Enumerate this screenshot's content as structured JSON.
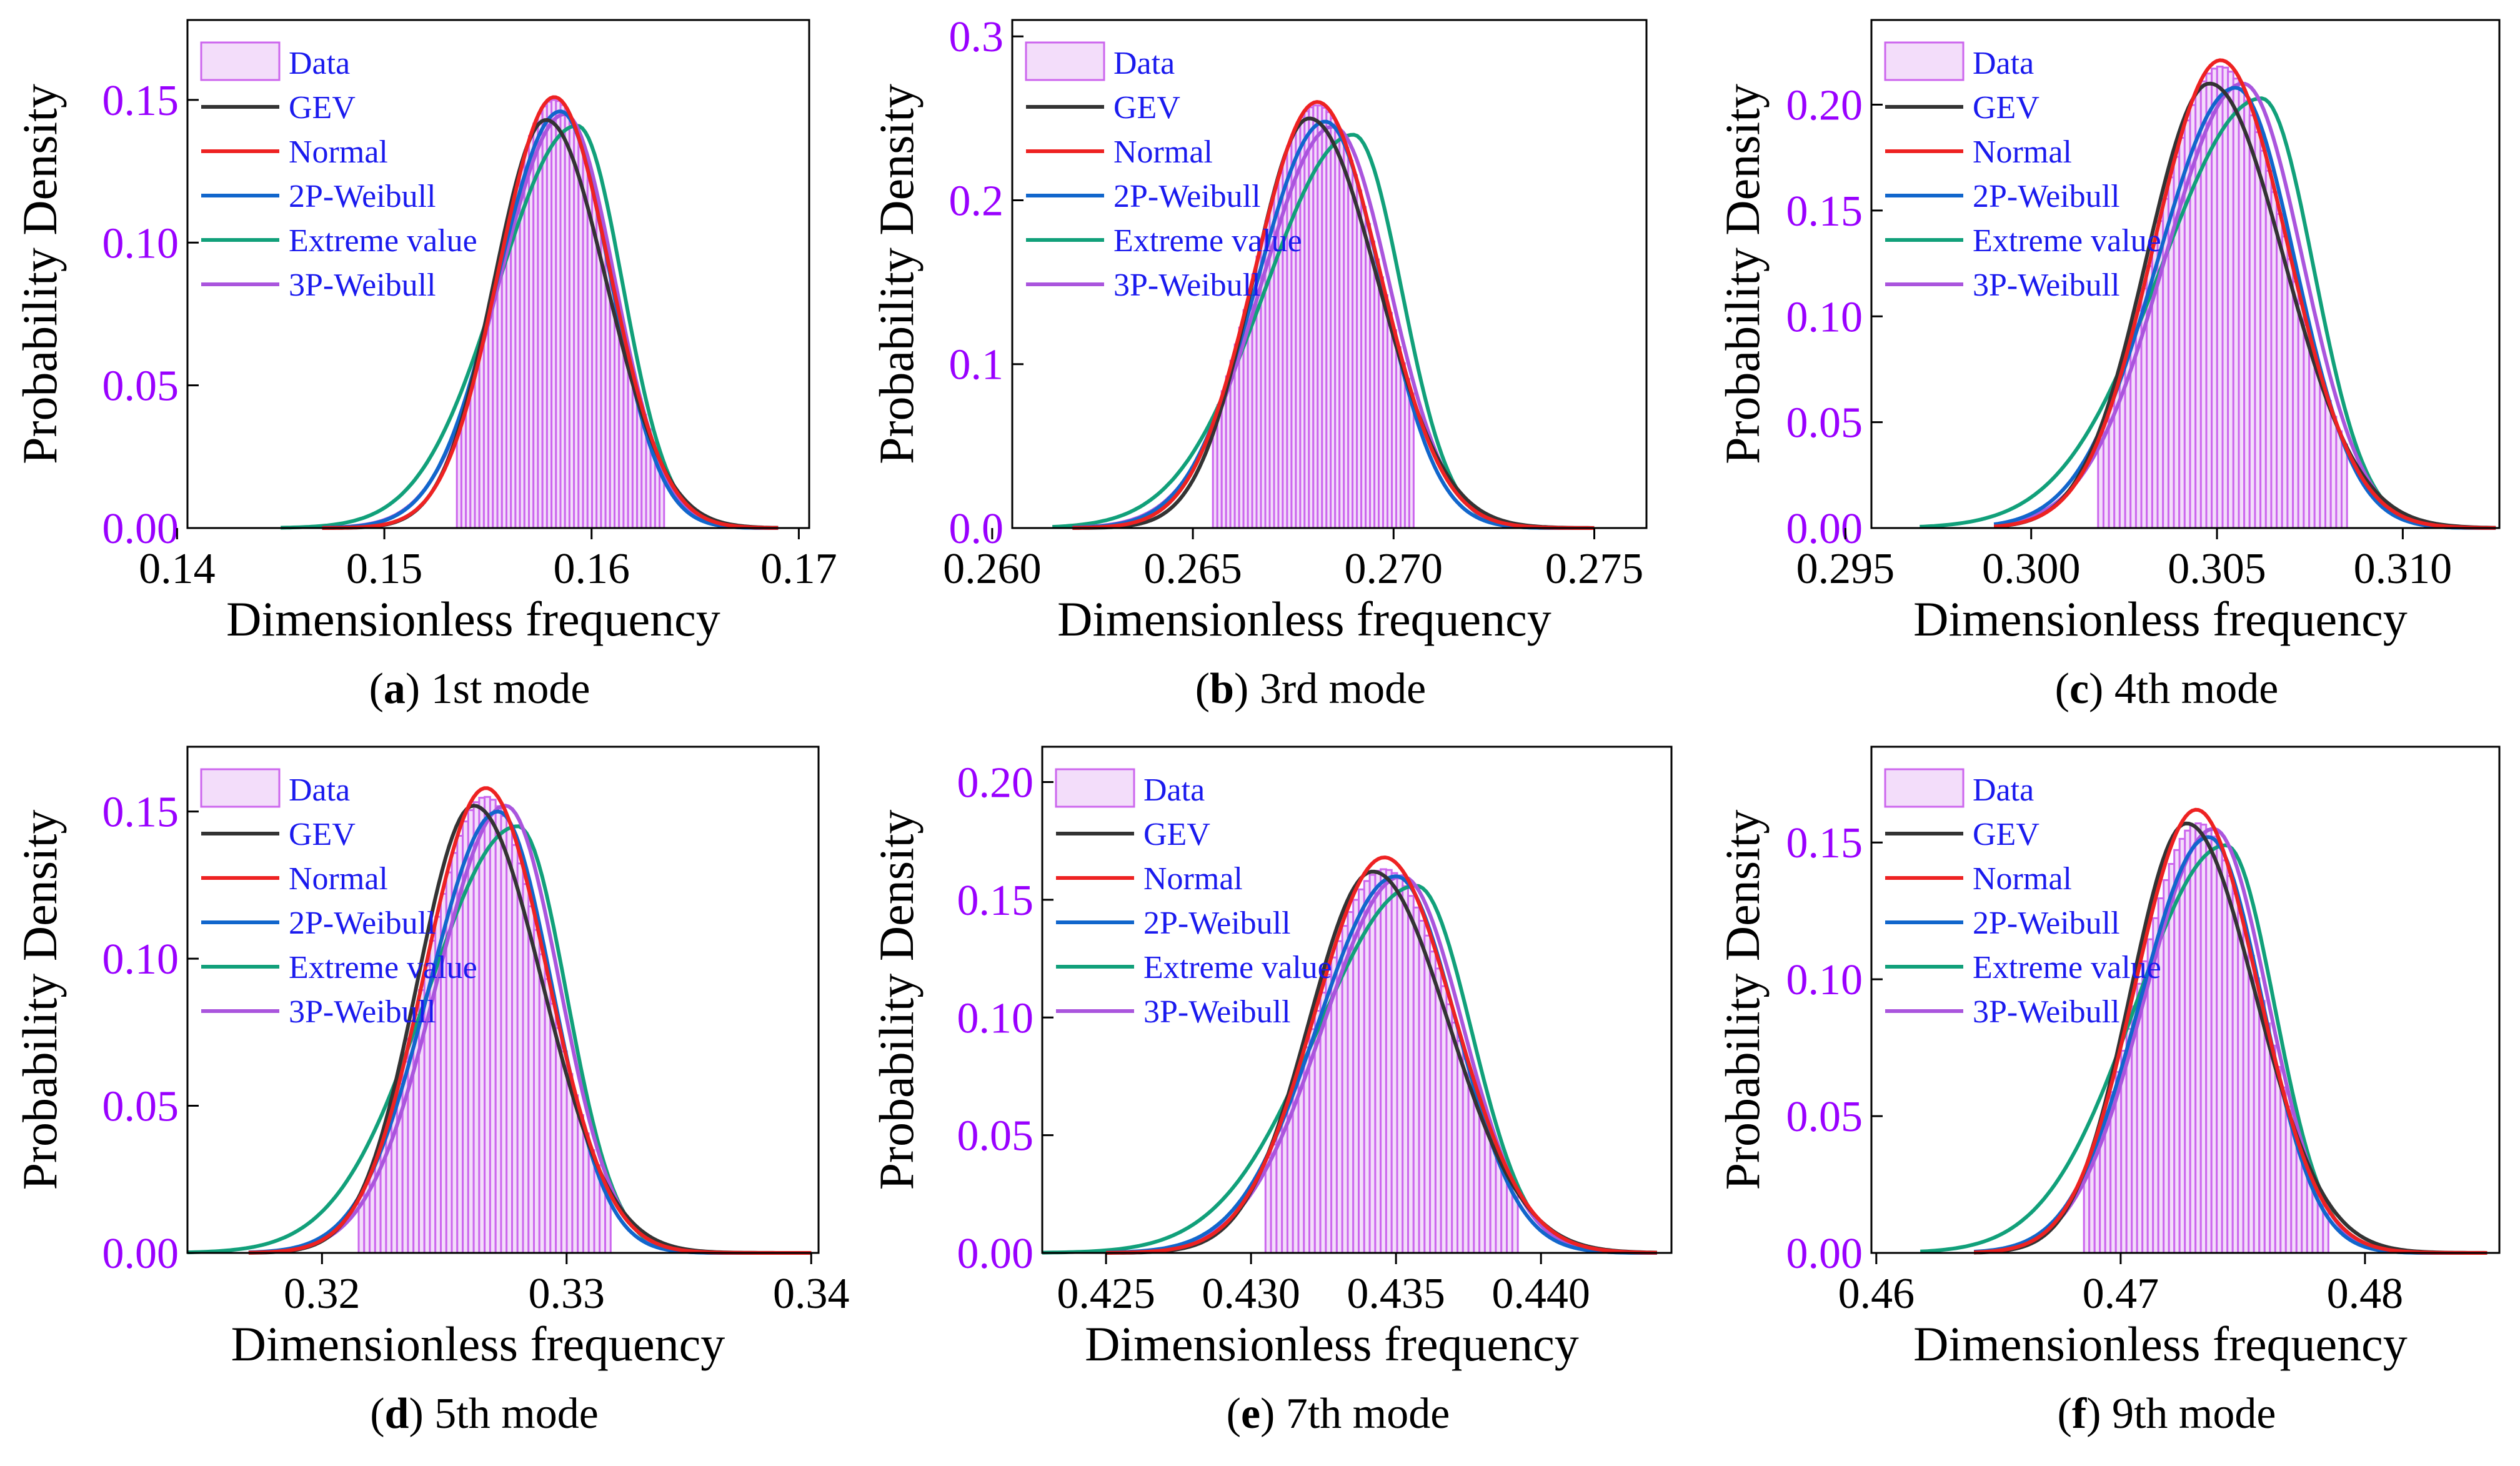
{
  "figure": {
    "ylabel": "Probability Density",
    "xlabel": "Dimensionless  frequency",
    "legend_entries": [
      "Data",
      "GEV",
      "Normal",
      "2P-Weibull",
      "Extreme value",
      "3P-Weibull"
    ],
    "colors": {
      "data_bar": "#cc66ee",
      "data_fill": "#f3ddfa",
      "gev": "#333333",
      "normal": "#ee2222",
      "weibull2p": "#1166cc",
      "extreme": "#11a07a",
      "weibull3p": "#aa55dd",
      "ytick": "#9900ff",
      "legend_text": "#1a1aee"
    }
  },
  "chart_data": [
    {
      "type": "line",
      "title": "1st mode",
      "caption_letter": "a",
      "xlabel": "Dimensionless  frequency",
      "ylabel": "Probability Density",
      "xlim": [
        0.1405,
        0.1705
      ],
      "ylim": [
        0,
        0.178
      ],
      "xticks": [
        0.14,
        0.15,
        0.16,
        0.17
      ],
      "xtick_labels": [
        "0.14",
        "0.15",
        "0.16",
        "0.17"
      ],
      "yticks": [
        0,
        0.05,
        0.1,
        0.15
      ],
      "ytick_labels": [
        "0.00",
        "0.05",
        "0.10",
        "0.15"
      ],
      "histogram": {
        "range": [
          0.1535,
          0.1635
        ],
        "sd": 0.00265,
        "mean": 0.1582,
        "peak": 0.15
      },
      "series": [
        {
          "name": "GEV",
          "mode": 0.1578,
          "peak": 0.143,
          "sd_left": 0.0025,
          "sd_right": 0.0029,
          "range": [
            0.147,
            0.169
          ]
        },
        {
          "name": "Normal",
          "mode": 0.1582,
          "peak": 0.151,
          "sd_left": 0.00265,
          "sd_right": 0.00265,
          "range": [
            0.147,
            0.169
          ]
        },
        {
          "name": "2P-Weibull",
          "mode": 0.1585,
          "peak": 0.146,
          "sd_left": 0.003,
          "sd_right": 0.0024,
          "range": [
            0.147,
            0.169
          ]
        },
        {
          "name": "Extreme value",
          "mode": 0.1593,
          "peak": 0.141,
          "sd_left": 0.0038,
          "sd_right": 0.0022,
          "range": [
            0.145,
            0.169
          ]
        },
        {
          "name": "3P-Weibull",
          "mode": 0.1587,
          "peak": 0.145,
          "sd_left": 0.0031,
          "sd_right": 0.0024,
          "range": [
            0.147,
            0.169
          ]
        }
      ]
    },
    {
      "type": "line",
      "title": "3rd mode",
      "caption_letter": "b",
      "xlabel": "Dimensionless  frequency",
      "ylabel": "Probability Density",
      "xlim": [
        0.2605,
        0.2763
      ],
      "ylim": [
        0,
        0.31
      ],
      "xticks": [
        0.26,
        0.265,
        0.27,
        0.275
      ],
      "xtick_labels": [
        "0.260",
        "0.265",
        "0.270",
        "0.275"
      ],
      "yticks": [
        0,
        0.1,
        0.2,
        0.3
      ],
      "ytick_labels": [
        "0.0",
        "0.1",
        "0.2",
        "0.3"
      ],
      "histogram": {
        "range": [
          0.2655,
          0.2705
        ],
        "sd": 0.00155,
        "mean": 0.2681,
        "peak": 0.258
      },
      "series": [
        {
          "name": "GEV",
          "mode": 0.2679,
          "peak": 0.25,
          "sd_left": 0.0014,
          "sd_right": 0.0017,
          "range": [
            0.262,
            0.275
          ]
        },
        {
          "name": "Normal",
          "mode": 0.2681,
          "peak": 0.26,
          "sd_left": 0.00155,
          "sd_right": 0.00155,
          "range": [
            0.262,
            0.275
          ]
        },
        {
          "name": "2P-Weibull",
          "mode": 0.2683,
          "peak": 0.248,
          "sd_left": 0.0017,
          "sd_right": 0.0014,
          "range": [
            0.262,
            0.275
          ]
        },
        {
          "name": "Extreme value",
          "mode": 0.269,
          "peak": 0.24,
          "sd_left": 0.0022,
          "sd_right": 0.0012,
          "range": [
            0.2615,
            0.275
          ]
        },
        {
          "name": "3P-Weibull",
          "mode": 0.2685,
          "peak": 0.245,
          "sd_left": 0.0018,
          "sd_right": 0.0014,
          "range": [
            0.262,
            0.275
          ]
        }
      ]
    },
    {
      "type": "line",
      "title": "4th mode",
      "caption_letter": "c",
      "xlabel": "Dimensionless  frequency",
      "ylabel": "Probability Density",
      "xlim": [
        0.2957,
        0.3126
      ],
      "ylim": [
        0,
        0.24
      ],
      "xticks": [
        0.295,
        0.3,
        0.305,
        0.31
      ],
      "xtick_labels": [
        "0.295",
        "0.300",
        "0.305",
        "0.310"
      ],
      "yticks": [
        0,
        0.05,
        0.1,
        0.15,
        0.2
      ],
      "ytick_labels": [
        "0.00",
        "0.05",
        "0.10",
        "0.15",
        "0.20"
      ],
      "histogram": {
        "range": [
          0.3018,
          0.3085
        ],
        "sd": 0.0018,
        "mean": 0.3051,
        "peak": 0.218
      },
      "series": [
        {
          "name": "GEV",
          "mode": 0.3048,
          "peak": 0.21,
          "sd_left": 0.0017,
          "sd_right": 0.002,
          "range": [
            0.299,
            0.3125
          ]
        },
        {
          "name": "Normal",
          "mode": 0.3051,
          "peak": 0.221,
          "sd_left": 0.0018,
          "sd_right": 0.0018,
          "range": [
            0.299,
            0.3125
          ]
        },
        {
          "name": "2P-Weibull",
          "mode": 0.3055,
          "peak": 0.208,
          "sd_left": 0.0021,
          "sd_right": 0.0016,
          "range": [
            0.299,
            0.3125
          ]
        },
        {
          "name": "Extreme value",
          "mode": 0.3062,
          "peak": 0.203,
          "sd_left": 0.0027,
          "sd_right": 0.0014,
          "range": [
            0.297,
            0.3125
          ]
        },
        {
          "name": "3P-Weibull",
          "mode": 0.3057,
          "peak": 0.21,
          "sd_left": 0.0021,
          "sd_right": 0.0016,
          "range": [
            0.299,
            0.3125
          ]
        }
      ]
    },
    {
      "type": "line",
      "title": "5th mode",
      "caption_letter": "d",
      "xlabel": "Dimensionless  frequency",
      "ylabel": "Probability Density",
      "xlim": [
        0.3145,
        0.3403
      ],
      "ylim": [
        0,
        0.172
      ],
      "xticks": [
        0.32,
        0.33,
        0.34
      ],
      "xtick_labels": [
        "0.32",
        "0.33",
        "0.34"
      ],
      "yticks": [
        0,
        0.05,
        0.1,
        0.15
      ],
      "ytick_labels": [
        "0.00",
        "0.05",
        "0.10",
        "0.15"
      ],
      "histogram": {
        "range": [
          0.3215,
          0.3318
        ],
        "sd": 0.0025,
        "mean": 0.3267,
        "peak": 0.155
      },
      "series": [
        {
          "name": "GEV",
          "mode": 0.3262,
          "peak": 0.152,
          "sd_left": 0.0023,
          "sd_right": 0.0028,
          "range": [
            0.317,
            0.34
          ]
        },
        {
          "name": "Normal",
          "mode": 0.3267,
          "peak": 0.158,
          "sd_left": 0.0025,
          "sd_right": 0.0025,
          "range": [
            0.317,
            0.34
          ]
        },
        {
          "name": "2P-Weibull",
          "mode": 0.3272,
          "peak": 0.15,
          "sd_left": 0.0028,
          "sd_right": 0.0022,
          "range": [
            0.317,
            0.34
          ]
        },
        {
          "name": "Extreme value",
          "mode": 0.328,
          "peak": 0.145,
          "sd_left": 0.0037,
          "sd_right": 0.002,
          "range": [
            0.3145,
            0.34
          ]
        },
        {
          "name": "3P-Weibull",
          "mode": 0.3275,
          "peak": 0.152,
          "sd_left": 0.0028,
          "sd_right": 0.0022,
          "range": [
            0.317,
            0.34
          ]
        }
      ]
    },
    {
      "type": "line",
      "title": "7th mode",
      "caption_letter": "e",
      "xlabel": "Dimensionless  frequency",
      "ylabel": "Probability Density",
      "xlim": [
        0.4228,
        0.4445
      ],
      "ylim": [
        0,
        0.215
      ],
      "xticks": [
        0.425,
        0.43,
        0.435,
        0.44
      ],
      "xtick_labels": [
        "0.425",
        "0.430",
        "0.435",
        "0.440"
      ],
      "yticks": [
        0,
        0.05,
        0.1,
        0.15,
        0.2
      ],
      "ytick_labels": [
        "0.00",
        "0.05",
        "0.10",
        "0.15",
        "0.20"
      ],
      "histogram": {
        "range": [
          0.4305,
          0.4392
        ],
        "sd": 0.0024,
        "mean": 0.4346,
        "peak": 0.163
      },
      "series": [
        {
          "name": "GEV",
          "mode": 0.4342,
          "peak": 0.162,
          "sd_left": 0.0022,
          "sd_right": 0.0026,
          "range": [
            0.425,
            0.444
          ]
        },
        {
          "name": "Normal",
          "mode": 0.4346,
          "peak": 0.168,
          "sd_left": 0.0024,
          "sd_right": 0.0024,
          "range": [
            0.425,
            0.444
          ]
        },
        {
          "name": "2P-Weibull",
          "mode": 0.435,
          "peak": 0.16,
          "sd_left": 0.0027,
          "sd_right": 0.0021,
          "range": [
            0.425,
            0.444
          ]
        },
        {
          "name": "Extreme value",
          "mode": 0.4357,
          "peak": 0.156,
          "sd_left": 0.0034,
          "sd_right": 0.0019,
          "range": [
            0.4228,
            0.444
          ]
        },
        {
          "name": "3P-Weibull",
          "mode": 0.4352,
          "peak": 0.16,
          "sd_left": 0.0027,
          "sd_right": 0.0021,
          "range": [
            0.425,
            0.444
          ]
        }
      ]
    },
    {
      "type": "line",
      "title": "9th mode",
      "caption_letter": "f",
      "xlabel": "Dimensionless  frequency",
      "ylabel": "Probability Density",
      "xlim": [
        0.4598,
        0.4855
      ],
      "ylim": [
        0,
        0.185
      ],
      "xticks": [
        0.46,
        0.47,
        0.48
      ],
      "xtick_labels": [
        "0.46",
        "0.47",
        "0.48"
      ],
      "yticks": [
        0,
        0.05,
        0.1,
        0.15
      ],
      "ytick_labels": [
        "0.00",
        "0.05",
        "0.10",
        "0.15"
      ],
      "histogram": {
        "range": [
          0.4685,
          0.4785
        ],
        "sd": 0.0025,
        "mean": 0.4732,
        "peak": 0.157
      },
      "series": [
        {
          "name": "GEV",
          "mode": 0.4727,
          "peak": 0.157,
          "sd_left": 0.0023,
          "sd_right": 0.0028,
          "range": [
            0.464,
            0.485
          ]
        },
        {
          "name": "Normal",
          "mode": 0.4731,
          "peak": 0.162,
          "sd_left": 0.0025,
          "sd_right": 0.0025,
          "range": [
            0.464,
            0.485
          ]
        },
        {
          "name": "2P-Weibull",
          "mode": 0.4736,
          "peak": 0.152,
          "sd_left": 0.0028,
          "sd_right": 0.0022,
          "range": [
            0.464,
            0.485
          ]
        },
        {
          "name": "Extreme value",
          "mode": 0.4743,
          "peak": 0.149,
          "sd_left": 0.0037,
          "sd_right": 0.002,
          "range": [
            0.4618,
            0.485
          ]
        },
        {
          "name": "3P-Weibull",
          "mode": 0.4738,
          "peak": 0.155,
          "sd_left": 0.0028,
          "sd_right": 0.0022,
          "range": [
            0.464,
            0.485
          ]
        }
      ]
    }
  ]
}
